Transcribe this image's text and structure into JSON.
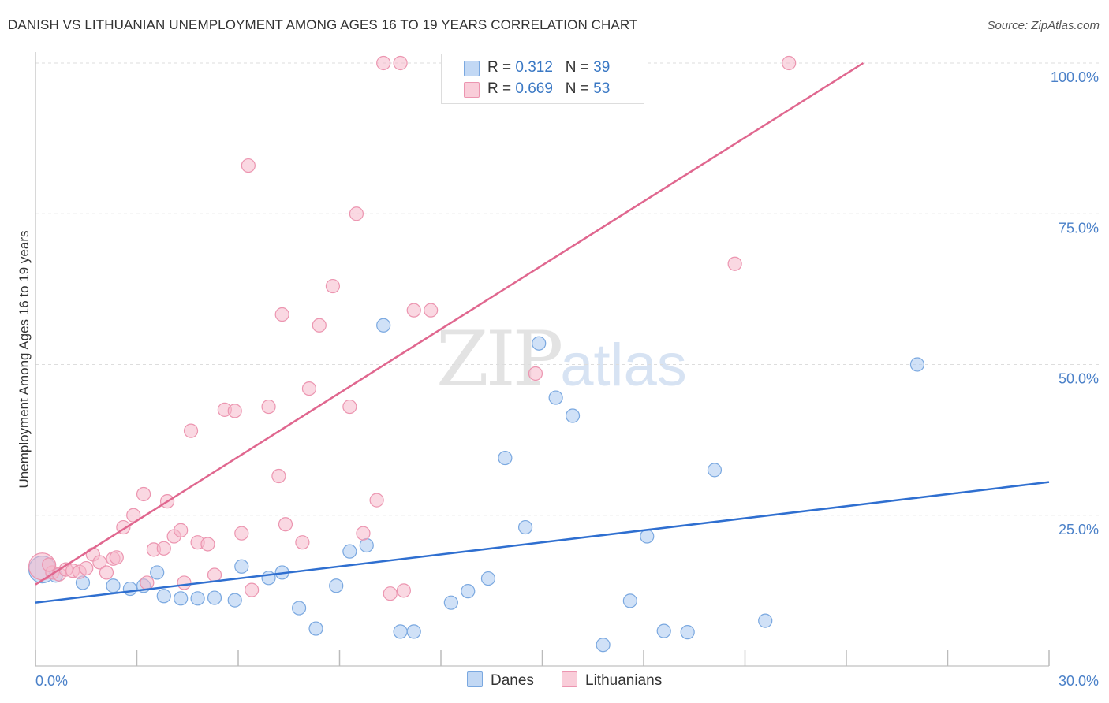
{
  "title": "DANISH VS LITHUANIAN UNEMPLOYMENT AMONG AGES 16 TO 19 YEARS CORRELATION CHART",
  "source": "Source: ZipAtlas.com",
  "watermark": {
    "zip": "ZIP",
    "atlas": "atlas"
  },
  "legend": {
    "danes": {
      "r_label": "R =",
      "r_value": "0.312",
      "n_label": "N =",
      "n_value": "39"
    },
    "lithuanians": {
      "r_label": "R =",
      "r_value": "0.669",
      "n_label": "N =",
      "n_value": "53"
    }
  },
  "bottom_legend": {
    "danes": "Danes",
    "lithuanians": "Lithuanians"
  },
  "colors": {
    "danes_fill": "#a9c8f0",
    "danes_stroke": "#7aa8e0",
    "danes_line": "#2f6fd0",
    "lith_fill": "#f6b8cb",
    "lith_stroke": "#ec95b0",
    "lith_line": "#e0678f",
    "tick_label": "#4a80c8",
    "grid": "#dddddd"
  },
  "chart_data": {
    "type": "scatter",
    "title": "DANISH VS LITHUANIAN UNEMPLOYMENT AMONG AGES 16 TO 19 YEARS CORRELATION CHART",
    "xlabel": "",
    "ylabel": "Unemployment Among Ages 16 to 19 years",
    "xlim": [
      0,
      30
    ],
    "ylim": [
      0,
      100
    ],
    "x_tick_labels": [
      "0.0%",
      "30.0%"
    ],
    "y_ticks": [
      25,
      50,
      75,
      100
    ],
    "y_tick_labels": [
      "25.0%",
      "50.0%",
      "75.0%",
      "100.0%"
    ],
    "grid": true,
    "legend_position": "top-center",
    "series": [
      {
        "name": "Danes",
        "trend": {
          "x": [
            0,
            30
          ],
          "y": [
            10.5,
            30.5
          ]
        },
        "points": [
          {
            "x": 0.2,
            "y": 16.0,
            "big": true
          },
          {
            "x": 1.4,
            "y": 13.8
          },
          {
            "x": 2.3,
            "y": 13.3
          },
          {
            "x": 2.8,
            "y": 12.8
          },
          {
            "x": 3.2,
            "y": 13.3
          },
          {
            "x": 3.6,
            "y": 15.5
          },
          {
            "x": 3.8,
            "y": 11.6
          },
          {
            "x": 4.3,
            "y": 11.2
          },
          {
            "x": 4.8,
            "y": 11.2
          },
          {
            "x": 5.3,
            "y": 11.3
          },
          {
            "x": 5.9,
            "y": 10.9
          },
          {
            "x": 6.1,
            "y": 16.5
          },
          {
            "x": 6.9,
            "y": 14.6
          },
          {
            "x": 7.3,
            "y": 15.5
          },
          {
            "x": 7.8,
            "y": 9.6
          },
          {
            "x": 8.3,
            "y": 6.2
          },
          {
            "x": 8.9,
            "y": 13.3
          },
          {
            "x": 9.3,
            "y": 19.0
          },
          {
            "x": 9.8,
            "y": 20.0
          },
          {
            "x": 10.3,
            "y": 56.5
          },
          {
            "x": 10.8,
            "y": 5.7
          },
          {
            "x": 11.2,
            "y": 5.7
          },
          {
            "x": 12.3,
            "y": 10.5
          },
          {
            "x": 12.8,
            "y": 12.4
          },
          {
            "x": 13.4,
            "y": 14.5
          },
          {
            "x": 13.9,
            "y": 34.5
          },
          {
            "x": 14.5,
            "y": 23.0
          },
          {
            "x": 14.9,
            "y": 53.5
          },
          {
            "x": 15.4,
            "y": 44.5
          },
          {
            "x": 15.9,
            "y": 41.5
          },
          {
            "x": 16.8,
            "y": 3.5
          },
          {
            "x": 17.6,
            "y": 10.8
          },
          {
            "x": 18.1,
            "y": 21.5
          },
          {
            "x": 18.6,
            "y": 5.8
          },
          {
            "x": 19.3,
            "y": 5.6
          },
          {
            "x": 20.1,
            "y": 32.5
          },
          {
            "x": 21.6,
            "y": 7.5
          },
          {
            "x": 26.1,
            "y": 50.0
          },
          {
            "x": 0.6,
            "y": 15.0
          }
        ]
      },
      {
        "name": "Lithuanians",
        "trend": {
          "x": [
            0,
            24.5
          ],
          "y": [
            13.5,
            100
          ]
        },
        "points": [
          {
            "x": 0.2,
            "y": 16.5,
            "big": true
          },
          {
            "x": 0.5,
            "y": 15.5
          },
          {
            "x": 0.7,
            "y": 15.2
          },
          {
            "x": 0.9,
            "y": 16.0
          },
          {
            "x": 1.1,
            "y": 15.8
          },
          {
            "x": 1.3,
            "y": 15.6
          },
          {
            "x": 1.5,
            "y": 16.2
          },
          {
            "x": 1.7,
            "y": 18.5
          },
          {
            "x": 1.9,
            "y": 17.2
          },
          {
            "x": 2.1,
            "y": 15.5
          },
          {
            "x": 2.3,
            "y": 17.8
          },
          {
            "x": 2.4,
            "y": 18.0
          },
          {
            "x": 2.6,
            "y": 23.0
          },
          {
            "x": 2.9,
            "y": 25.0
          },
          {
            "x": 3.2,
            "y": 28.5
          },
          {
            "x": 3.3,
            "y": 13.8
          },
          {
            "x": 3.5,
            "y": 19.3
          },
          {
            "x": 3.8,
            "y": 19.5
          },
          {
            "x": 3.9,
            "y": 27.3
          },
          {
            "x": 4.1,
            "y": 21.5
          },
          {
            "x": 4.3,
            "y": 22.5
          },
          {
            "x": 4.4,
            "y": 13.8
          },
          {
            "x": 4.6,
            "y": 39.0
          },
          {
            "x": 4.8,
            "y": 20.5
          },
          {
            "x": 5.1,
            "y": 20.2
          },
          {
            "x": 5.3,
            "y": 15.1
          },
          {
            "x": 5.6,
            "y": 42.5
          },
          {
            "x": 5.9,
            "y": 42.3
          },
          {
            "x": 6.1,
            "y": 22.0
          },
          {
            "x": 6.3,
            "y": 83.0
          },
          {
            "x": 6.4,
            "y": 12.6
          },
          {
            "x": 6.9,
            "y": 43.0
          },
          {
            "x": 7.2,
            "y": 31.5
          },
          {
            "x": 7.3,
            "y": 58.3
          },
          {
            "x": 7.4,
            "y": 23.5
          },
          {
            "x": 7.9,
            "y": 20.5
          },
          {
            "x": 8.1,
            "y": 46.0
          },
          {
            "x": 8.4,
            "y": 56.5
          },
          {
            "x": 8.8,
            "y": 63.0
          },
          {
            "x": 9.3,
            "y": 43.0
          },
          {
            "x": 9.5,
            "y": 75.0
          },
          {
            "x": 9.7,
            "y": 22.0
          },
          {
            "x": 10.1,
            "y": 27.5
          },
          {
            "x": 10.5,
            "y": 12.0
          },
          {
            "x": 10.9,
            "y": 12.5
          },
          {
            "x": 10.3,
            "y": 100.0
          },
          {
            "x": 10.8,
            "y": 100.0
          },
          {
            "x": 11.2,
            "y": 59.0
          },
          {
            "x": 11.7,
            "y": 59.0
          },
          {
            "x": 14.8,
            "y": 48.5
          },
          {
            "x": 20.7,
            "y": 66.7
          },
          {
            "x": 22.3,
            "y": 100.0
          },
          {
            "x": 0.4,
            "y": 16.8
          }
        ]
      }
    ]
  }
}
